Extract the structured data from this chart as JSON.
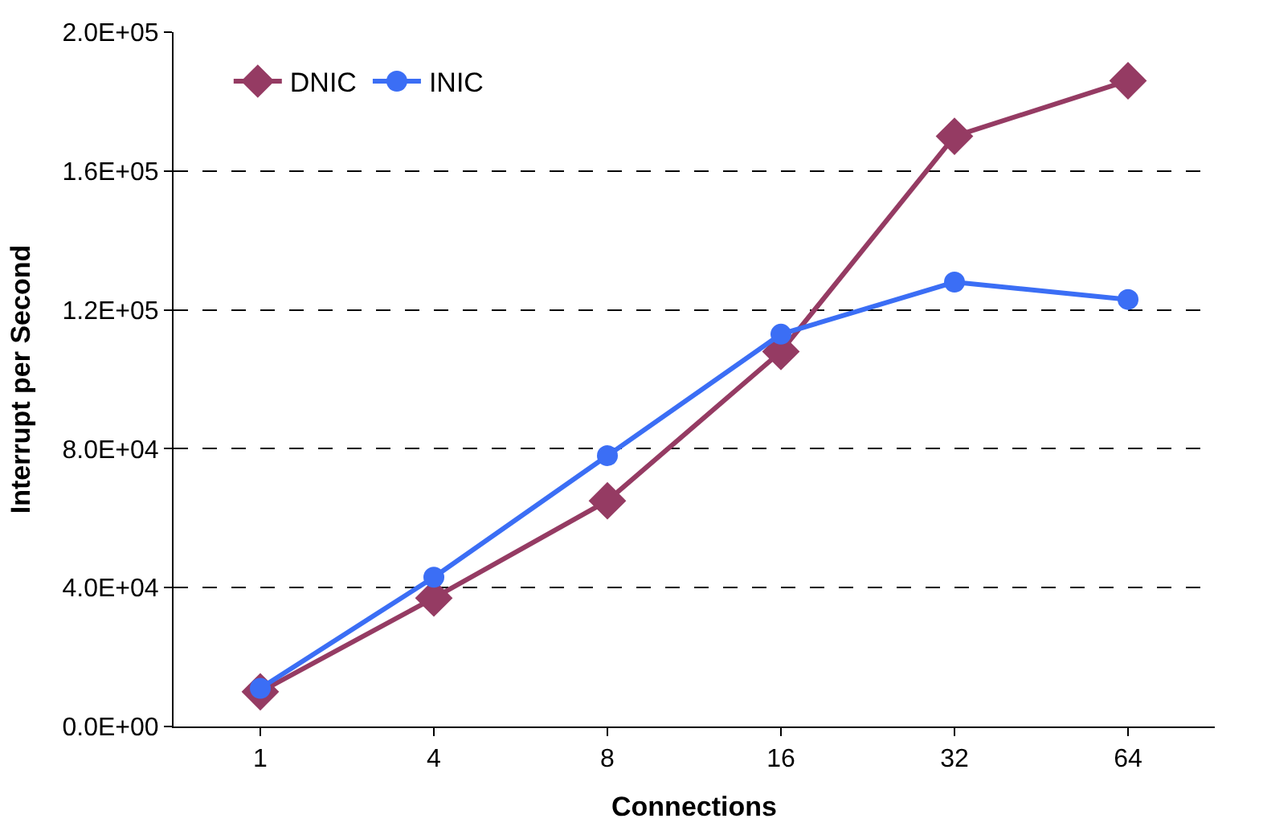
{
  "chart_data": {
    "type": "line",
    "xlabel": "Connections",
    "ylabel": "Interrupt per Second",
    "categories": [
      "1",
      "4",
      "8",
      "16",
      "32",
      "64"
    ],
    "series": [
      {
        "name": "DNIC",
        "color": "#953b63",
        "marker": "diamond",
        "values": [
          10000,
          37000,
          65000,
          108000,
          170000,
          186000
        ]
      },
      {
        "name": "INIC",
        "color": "#3b6ef5",
        "marker": "circle",
        "values": [
          11000,
          43000,
          78000,
          113000,
          128000,
          123000
        ]
      }
    ],
    "ylim": [
      0,
      200000
    ],
    "yticks": [
      {
        "value": 0,
        "label": "0.0E+00"
      },
      {
        "value": 40000,
        "label": "4.0E+04"
      },
      {
        "value": 80000,
        "label": "8.0E+04"
      },
      {
        "value": 120000,
        "label": "1.2E+05"
      },
      {
        "value": 160000,
        "label": "1.6E+05"
      },
      {
        "value": 200000,
        "label": "2.0E+05"
      }
    ],
    "grid": "y",
    "legend": "top left",
    "line_style": "solid"
  }
}
